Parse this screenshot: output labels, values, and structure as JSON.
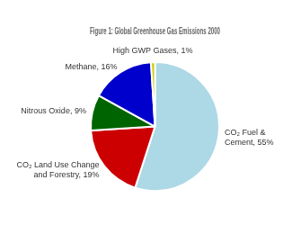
{
  "chart_data": {
    "type": "pie",
    "title": "Figure 1: Global Greenhouse Gas Emissions 2000",
    "values": [
      55,
      19,
      9,
      16,
      1
    ],
    "value_labels": [
      "CO₂ Fuel &\nCement, 55%",
      "CO₂ Land Use Change\nand Forestry, 19%",
      "Nitrous Oxide, 9%",
      "Methane, 16%",
      "High GWP Gases, 1%"
    ],
    "colors": [
      "#add8e6",
      "#cc0000",
      "#006400",
      "#0000cd",
      "#cccc00"
    ],
    "data_labels": true
  }
}
